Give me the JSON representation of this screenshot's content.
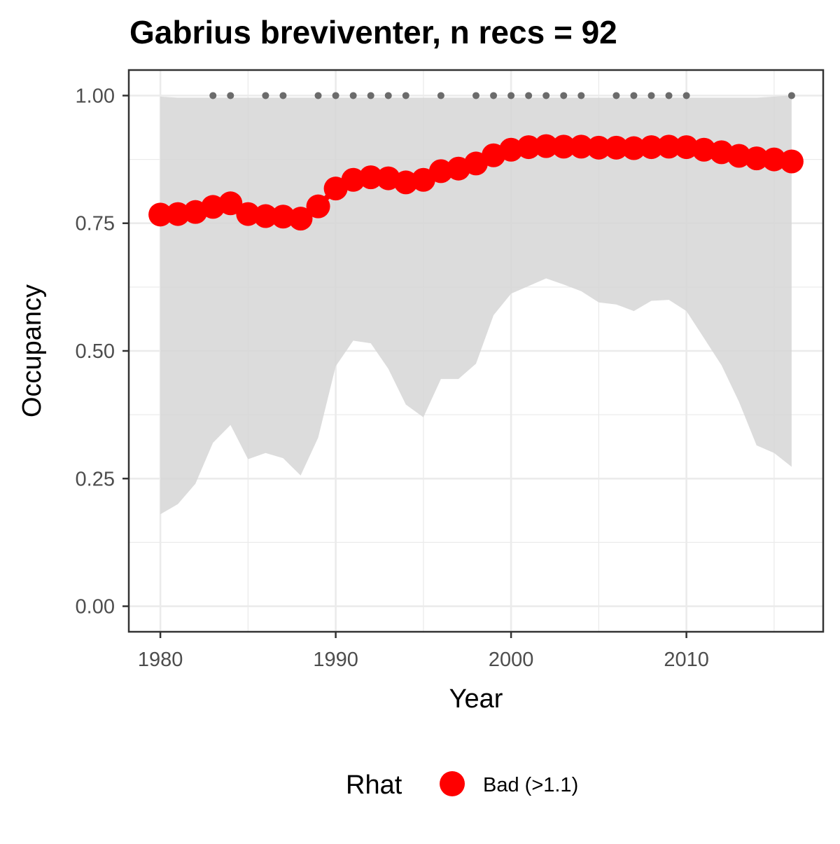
{
  "chart_data": {
    "type": "line",
    "title": "Gabrius breviventer, n recs = 92",
    "xlabel": "Year",
    "ylabel": "Occupancy",
    "xlim": [
      1978.2,
      2017.8
    ],
    "ylim": [
      -0.05,
      1.05
    ],
    "x_ticks": [
      1980,
      1990,
      2000,
      2010
    ],
    "x_tick_labels": [
      "1980",
      "1990",
      "2000",
      "2010"
    ],
    "x_minor_ticks": [
      1985,
      1995,
      2005,
      2015
    ],
    "y_ticks": [
      0,
      0.25,
      0.5,
      0.75,
      1
    ],
    "y_tick_labels": [
      "0.00",
      "0.25",
      "0.50",
      "0.75",
      "1.00"
    ],
    "y_minor_ticks": [
      0.125,
      0.375,
      0.625,
      0.875
    ],
    "grid": true,
    "x": [
      1980,
      1981,
      1982,
      1983,
      1984,
      1985,
      1986,
      1987,
      1988,
      1989,
      1990,
      1991,
      1992,
      1993,
      1994,
      1995,
      1996,
      1997,
      1998,
      1999,
      2000,
      2001,
      2002,
      2003,
      2004,
      2005,
      2006,
      2007,
      2008,
      2009,
      2010,
      2011,
      2012,
      2013,
      2014,
      2015,
      2016
    ],
    "occupancy": [
      0.767,
      0.768,
      0.772,
      0.782,
      0.789,
      0.768,
      0.764,
      0.763,
      0.759,
      0.783,
      0.818,
      0.835,
      0.84,
      0.838,
      0.83,
      0.835,
      0.852,
      0.857,
      0.867,
      0.883,
      0.894,
      0.899,
      0.901,
      0.9,
      0.9,
      0.898,
      0.898,
      0.897,
      0.899,
      0.9,
      0.899,
      0.894,
      0.889,
      0.882,
      0.877,
      0.875,
      0.871
    ],
    "upper": [
      0.998,
      0.996,
      0.996,
      0.996,
      0.996,
      0.996,
      0.996,
      0.996,
      0.996,
      0.996,
      0.996,
      0.996,
      0.996,
      0.996,
      0.996,
      0.996,
      0.996,
      0.996,
      0.996,
      0.996,
      0.996,
      0.996,
      0.996,
      0.996,
      0.996,
      0.996,
      0.996,
      0.996,
      0.996,
      0.996,
      0.996,
      0.996,
      0.996,
      0.996,
      0.996,
      0.998,
      1.0
    ],
    "lower": [
      0.18,
      0.2,
      0.24,
      0.32,
      0.355,
      0.288,
      0.3,
      0.29,
      0.256,
      0.33,
      0.47,
      0.52,
      0.515,
      0.465,
      0.395,
      0.37,
      0.445,
      0.445,
      0.475,
      0.57,
      0.612,
      0.627,
      0.642,
      0.63,
      0.617,
      0.595,
      0.591,
      0.578,
      0.598,
      0.6,
      0.578,
      0.525,
      0.472,
      0.4,
      0.315,
      0.3,
      0.273
    ],
    "record_years": [
      1983,
      1984,
      1986,
      1987,
      1989,
      1990,
      1991,
      1992,
      1993,
      1994,
      1996,
      1998,
      1999,
      2000,
      2001,
      2002,
      2003,
      2004,
      2006,
      2007,
      2008,
      2009,
      2010,
      2016
    ],
    "record_value": 1.0,
    "series": [
      {
        "name": "Bad (>1.1)",
        "color": "#ff0000"
      }
    ],
    "legend": {
      "title": "Rhat",
      "position": "bottom",
      "labels": [
        "Bad (>1.1)"
      ]
    },
    "colors": {
      "line": "#ff0000",
      "ribbon": "#d6d6d6",
      "records": "#6b6b6b",
      "grid": "#ebebeb",
      "panel_border": "#333333"
    }
  }
}
